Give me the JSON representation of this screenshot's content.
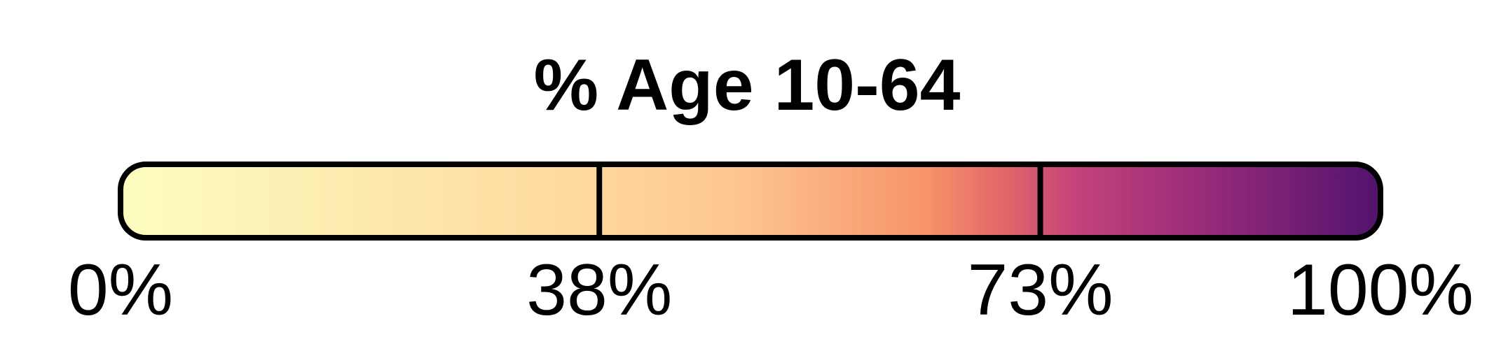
{
  "chart_data": {
    "type": "colorbar",
    "title": "% Age 10-64",
    "domain": [
      0,
      100
    ],
    "unit": "%",
    "ticks": [
      {
        "value": 0,
        "label": "0%"
      },
      {
        "value": 38,
        "label": "38%"
      },
      {
        "value": 73,
        "label": "73%"
      },
      {
        "value": 100,
        "label": "100%"
      }
    ],
    "breaks": [
      38,
      73
    ],
    "colormap": "magma-reversed",
    "gradient_stops": [
      {
        "value": 0,
        "color": "#fcfdbf"
      },
      {
        "value": 20,
        "color": "#fde9ae"
      },
      {
        "value": 38,
        "color": "#fed79c"
      },
      {
        "value": 50,
        "color": "#fdc38d"
      },
      {
        "value": 64,
        "color": "#f7936a"
      },
      {
        "value": 70,
        "color": "#e26768"
      },
      {
        "value": 76,
        "color": "#c2427a"
      },
      {
        "value": 86,
        "color": "#982b7a"
      },
      {
        "value": 100,
        "color": "#51136e"
      }
    ],
    "outline_color": "#000000"
  }
}
